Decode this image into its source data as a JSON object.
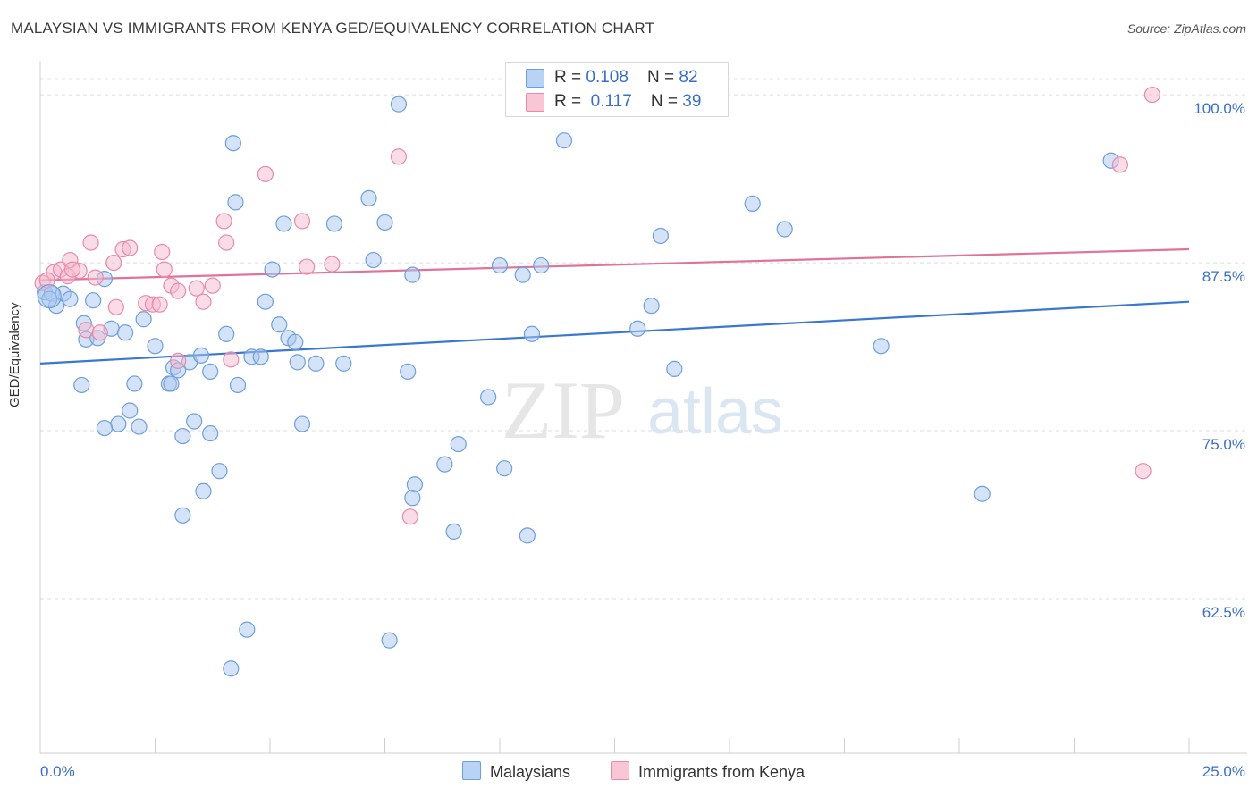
{
  "title": "MALAYSIAN VS IMMIGRANTS FROM KENYA GED/EQUIVALENCY CORRELATION CHART",
  "source": "Source: ZipAtlas.com",
  "watermark": {
    "zip": "ZIP",
    "atlas": "atlas"
  },
  "colors": {
    "blue_fill": "#a9c8f0",
    "blue_stroke": "#6d9fdc",
    "blue_line": "#3a78d0",
    "pink_fill": "#f6b9cd",
    "pink_stroke": "#e88aab",
    "pink_line": "#e0739a",
    "axis_text": "#3a6fc9"
  },
  "legend_top": {
    "rows": [
      {
        "r_label": "R = ",
        "r_value": "0.108",
        "n_label": "N = ",
        "n_value": "82"
      },
      {
        "r_label": "R = ",
        "r_value": "0.117",
        "n_label": "N = ",
        "n_value": "39"
      }
    ]
  },
  "legend_bottom": [
    "Malaysians",
    "Immigrants from Kenya"
  ],
  "chart_data": {
    "type": "scatter",
    "title": "MALAYSIAN VS IMMIGRANTS FROM KENYA GED/EQUIVALENCY CORRELATION CHART",
    "xlabel": "",
    "ylabel": "GED/Equivalency",
    "xlim": [
      0,
      25
    ],
    "ylim": [
      51,
      102
    ],
    "x_tick_labels": [
      "0.0%",
      "25.0%"
    ],
    "y_ticks": [
      62.5,
      75.0,
      87.5,
      100.0
    ],
    "y_tick_labels": [
      "62.5%",
      "75.0%",
      "87.5%",
      "100.0%"
    ],
    "grid": true,
    "series": [
      {
        "name": "Malaysians",
        "R": 0.108,
        "N": 82,
        "trend": {
          "x": [
            0,
            25
          ],
          "y": [
            80.0,
            84.6
          ]
        },
        "points": [
          [
            0.1,
            85.3
          ],
          [
            0.25,
            85.2
          ],
          [
            0.5,
            85.2
          ],
          [
            0.35,
            84.3
          ],
          [
            0.65,
            84.8
          ],
          [
            1.15,
            84.7
          ],
          [
            1.4,
            86.3
          ],
          [
            0.95,
            83.0
          ],
          [
            1.55,
            82.6
          ],
          [
            1.85,
            82.3
          ],
          [
            2.25,
            83.3
          ],
          [
            1.0,
            81.8
          ],
          [
            1.25,
            81.9
          ],
          [
            2.5,
            81.3
          ],
          [
            2.9,
            79.7
          ],
          [
            3.25,
            80.1
          ],
          [
            3.0,
            79.5
          ],
          [
            3.5,
            80.6
          ],
          [
            3.7,
            79.4
          ],
          [
            2.8,
            78.5
          ],
          [
            2.85,
            78.5
          ],
          [
            2.05,
            78.5
          ],
          [
            1.95,
            76.5
          ],
          [
            1.7,
            75.5
          ],
          [
            2.15,
            75.3
          ],
          [
            1.4,
            75.2
          ],
          [
            3.35,
            75.7
          ],
          [
            3.7,
            74.8
          ],
          [
            3.9,
            72.0
          ],
          [
            3.1,
            74.6
          ],
          [
            3.55,
            70.5
          ],
          [
            3.1,
            68.7
          ],
          [
            4.2,
            96.4
          ],
          [
            4.25,
            92.0
          ],
          [
            4.05,
            82.2
          ],
          [
            4.3,
            78.4
          ],
          [
            4.6,
            80.5
          ],
          [
            4.8,
            80.5
          ],
          [
            4.9,
            84.6
          ],
          [
            5.2,
            82.9
          ],
          [
            5.3,
            90.4
          ],
          [
            5.05,
            87.0
          ],
          [
            5.4,
            81.9
          ],
          [
            5.55,
            81.6
          ],
          [
            5.6,
            80.1
          ],
          [
            6.0,
            80.0
          ],
          [
            5.7,
            75.5
          ],
          [
            6.4,
            90.4
          ],
          [
            6.6,
            80.0
          ],
          [
            7.15,
            92.3
          ],
          [
            7.25,
            87.7
          ],
          [
            7.5,
            90.5
          ],
          [
            7.8,
            99.3
          ],
          [
            8.0,
            79.4
          ],
          [
            8.1,
            86.6
          ],
          [
            8.15,
            71.0
          ],
          [
            8.1,
            70.0
          ],
          [
            8.8,
            72.5
          ],
          [
            9.0,
            67.5
          ],
          [
            9.1,
            74.0
          ],
          [
            9.75,
            77.5
          ],
          [
            10.0,
            87.3
          ],
          [
            10.1,
            72.2
          ],
          [
            10.5,
            86.6
          ],
          [
            10.6,
            67.2
          ],
          [
            10.9,
            87.3
          ],
          [
            11.4,
            96.6
          ],
          [
            10.7,
            82.2
          ],
          [
            4.15,
            57.3
          ],
          [
            4.5,
            60.2
          ],
          [
            7.6,
            59.4
          ],
          [
            13.0,
            82.6
          ],
          [
            13.3,
            84.3
          ],
          [
            13.5,
            89.5
          ],
          [
            13.8,
            79.6
          ],
          [
            15.5,
            91.9
          ],
          [
            16.2,
            90.0
          ],
          [
            18.3,
            81.3
          ],
          [
            20.5,
            70.3
          ],
          [
            23.3,
            95.1
          ],
          [
            0.9,
            78.4
          ],
          [
            0.2,
            84.8
          ]
        ]
      },
      {
        "name": "Immigrants from Kenya",
        "R": 0.117,
        "N": 39,
        "trend": {
          "x": [
            0,
            25
          ],
          "y": [
            86.2,
            88.5
          ]
        },
        "points": [
          [
            0.05,
            86.0
          ],
          [
            0.3,
            86.8
          ],
          [
            0.45,
            87.0
          ],
          [
            0.6,
            86.5
          ],
          [
            0.65,
            87.7
          ],
          [
            0.85,
            86.9
          ],
          [
            1.1,
            89.0
          ],
          [
            1.2,
            86.4
          ],
          [
            1.6,
            87.5
          ],
          [
            1.8,
            88.5
          ],
          [
            1.95,
            88.6
          ],
          [
            2.3,
            84.5
          ],
          [
            2.45,
            84.4
          ],
          [
            2.6,
            84.4
          ],
          [
            2.7,
            87.0
          ],
          [
            2.65,
            88.3
          ],
          [
            2.85,
            85.8
          ],
          [
            3.0,
            85.4
          ],
          [
            3.4,
            85.6
          ],
          [
            3.55,
            84.6
          ],
          [
            3.75,
            85.8
          ],
          [
            1.0,
            82.5
          ],
          [
            1.3,
            82.3
          ],
          [
            1.65,
            84.2
          ],
          [
            3.0,
            80.2
          ],
          [
            4.05,
            89.0
          ],
          [
            4.15,
            80.3
          ],
          [
            4.9,
            94.1
          ],
          [
            5.7,
            90.6
          ],
          [
            5.8,
            87.2
          ],
          [
            6.35,
            87.4
          ],
          [
            4.0,
            90.6
          ],
          [
            7.8,
            95.4
          ],
          [
            8.05,
            68.6
          ],
          [
            24.2,
            100.0
          ],
          [
            23.5,
            94.8
          ],
          [
            24.0,
            72.0
          ],
          [
            0.7,
            87.0
          ],
          [
            0.15,
            86.2
          ]
        ]
      }
    ]
  }
}
